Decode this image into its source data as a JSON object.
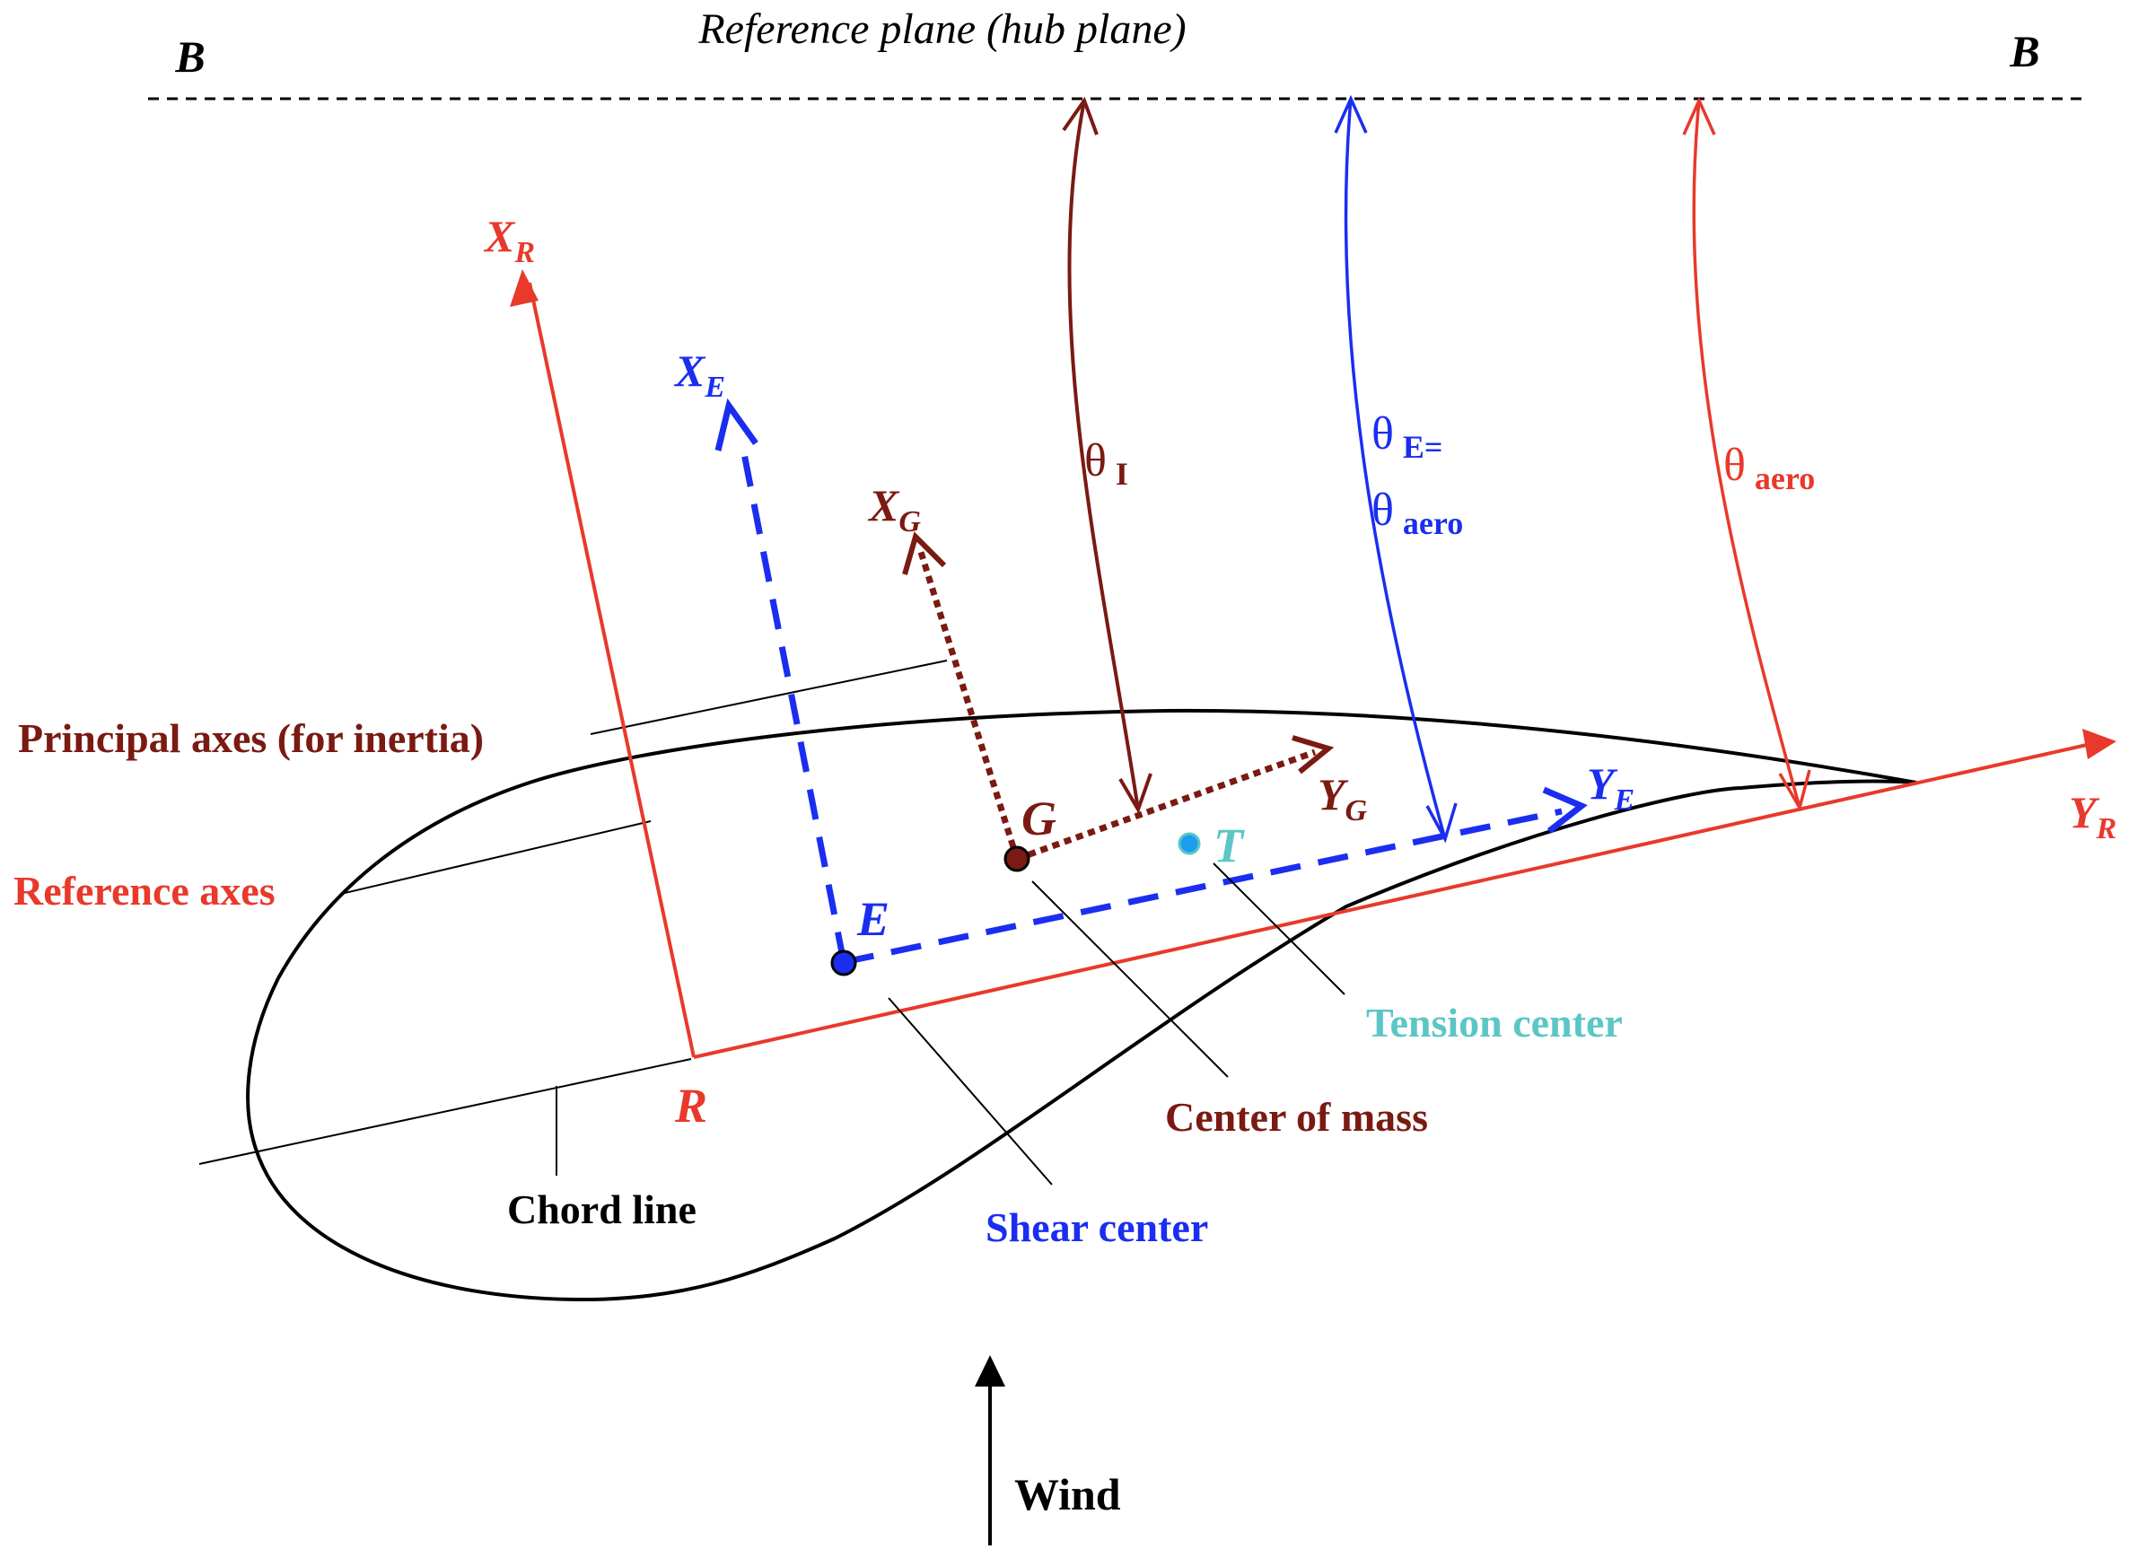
{
  "reference_plane": {
    "title": "Reference plane (hub plane)",
    "left_label": "B",
    "right_label": "B"
  },
  "axes": {
    "x_r": {
      "main": "X",
      "sub": "R"
    },
    "y_r": {
      "main": "Y",
      "sub": "R"
    },
    "x_e": {
      "main": "X",
      "sub": "E"
    },
    "y_e": {
      "main": "Y",
      "sub": "E"
    },
    "x_g": {
      "main": "X",
      "sub": "G"
    },
    "y_g": {
      "main": "Y",
      "sub": "G"
    }
  },
  "angles": {
    "theta_i": {
      "symbol": "θ",
      "sub": "I"
    },
    "theta_e": {
      "symbol": "θ",
      "sub": "E="
    },
    "theta_e_aero": {
      "symbol": "θ",
      "sub": "aero"
    },
    "theta_aero": {
      "symbol": "θ",
      "sub": "aero"
    }
  },
  "points": {
    "r": "R",
    "e": "E",
    "g": "G",
    "t": "T"
  },
  "labels": {
    "principal_axes": "Principal axes (for inertia)",
    "reference_axes": "Reference axes",
    "chord_line": "Chord line",
    "shear_center": "Shear center",
    "center_of_mass": "Center of mass",
    "tension_center": "Tension center",
    "wind": "Wind"
  },
  "colors": {
    "reference": "#e8392b",
    "elastic": "#1b2ef0",
    "inertia": "#7a1a12",
    "tension": "#5cc6c6",
    "outline": "#000000"
  }
}
